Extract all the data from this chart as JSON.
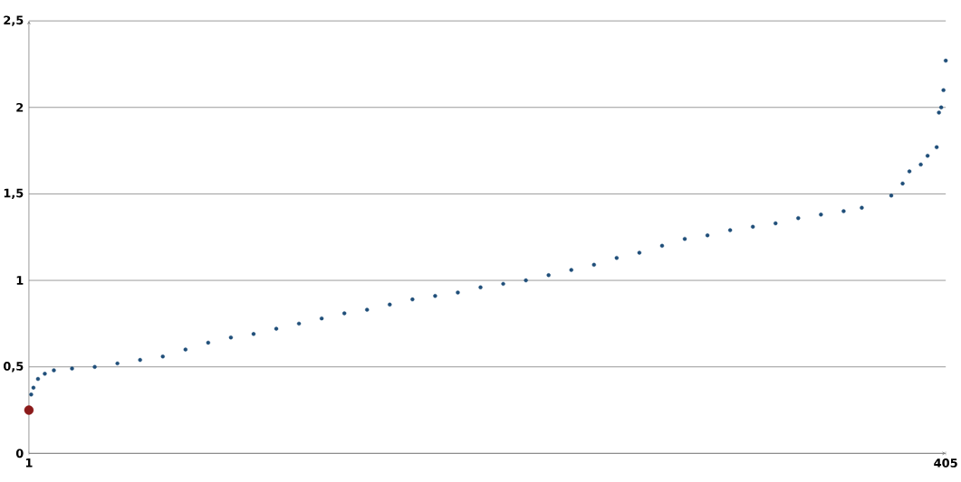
{
  "chart_data": {
    "type": "scatter",
    "grid": "y",
    "xlim": [
      1,
      405
    ],
    "xticks": [
      1,
      405
    ],
    "ylim": [
      0,
      2.5
    ],
    "yticks": [
      0,
      {
        "value": 0.5,
        "label": "0,5"
      },
      1,
      {
        "value": 1.5,
        "label": "1,5"
      },
      2,
      {
        "value": 2.5,
        "label": "2,5"
      }
    ],
    "series": [
      {
        "color": "#1f4e79",
        "x": [
          2,
          3,
          5,
          8,
          12,
          20,
          30,
          40,
          50,
          60,
          70,
          80,
          90,
          100,
          110,
          120,
          130,
          140,
          150,
          160,
          170,
          180,
          190,
          200,
          210,
          220,
          230,
          240,
          250,
          260,
          270,
          280,
          290,
          300,
          310,
          320,
          330,
          340,
          350,
          360,
          368,
          381,
          386,
          389,
          394,
          397,
          401,
          402,
          403,
          404,
          405
        ],
        "values": [
          0.34,
          0.38,
          0.43,
          0.46,
          0.48,
          0.49,
          0.5,
          0.52,
          0.54,
          0.56,
          0.6,
          0.64,
          0.67,
          0.69,
          0.72,
          0.75,
          0.78,
          0.81,
          0.83,
          0.86,
          0.89,
          0.91,
          0.93,
          0.96,
          0.98,
          1.0,
          1.03,
          1.06,
          1.09,
          1.13,
          1.16,
          1.2,
          1.24,
          1.26,
          1.29,
          1.31,
          1.33,
          1.36,
          1.38,
          1.4,
          1.42,
          1.49,
          1.56,
          1.63,
          1.67,
          1.72,
          1.77,
          1.97,
          2.0,
          2.1,
          2.27
        ]
      },
      {
        "color": "#8b1a1a",
        "x": [
          1
        ],
        "values": [
          0.25
        ]
      }
    ]
  }
}
